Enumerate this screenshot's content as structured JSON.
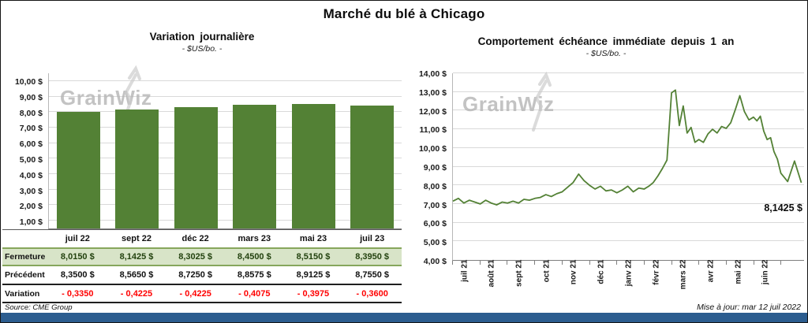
{
  "page": {
    "title": "Marché du blé à Chicago",
    "watermark": "GrainWiz",
    "source_note": "Source: CME Group",
    "update_note": "Mise à jour: mar 12 juil 2022"
  },
  "colors": {
    "bar_green": "#538135",
    "line_green": "#538135",
    "close_row_bg": "#d8e4c8",
    "close_row_border": "#86a65c",
    "variation_red": "#ff0000",
    "footer_blue": "#2c5d8f",
    "gridline_gray": "#d9d9d9"
  },
  "chart_data": [
    {
      "id": "daily_variation",
      "type": "bar",
      "title": "Variation journalière",
      "subtitle": "- $US/bo. -",
      "categories": [
        "juil 22",
        "sept 22",
        "déc 22",
        "mars 23",
        "mai 23",
        "juil 23"
      ],
      "values": [
        8.015,
        8.1425,
        8.3025,
        8.45,
        8.515,
        8.395
      ],
      "y_tick_labels": [
        "10,00 $",
        "9,00 $",
        "8,00 $",
        "7,00 $",
        "6,00 $",
        "5,00 $",
        "4,00 $",
        "3,00 $",
        "2,00 $",
        "1,00 $"
      ],
      "tick_values": [
        10,
        9,
        8,
        7,
        6,
        5,
        4,
        3,
        2,
        1
      ],
      "ylim": [
        0.5,
        10.5
      ],
      "grid": true,
      "legend": false
    },
    {
      "id": "front_month_one_year",
      "type": "line",
      "title": "Comportement échéance immédiate depuis 1 an",
      "subtitle": "- $US/bo. -",
      "x_tick_labels": [
        "juil 21",
        "août 21",
        "sept 21",
        "oct 21",
        "nov 21",
        "déc 21",
        "janv 22",
        "févr 22",
        "mars 22",
        "avr 22",
        "mai 22",
        "juin 22"
      ],
      "x_span_months": 12.85,
      "y_tick_labels": [
        "14,00 $",
        "13,00 $",
        "12,00 $",
        "11,00 $",
        "10,00 $",
        "9,00 $",
        "8,00 $",
        "7,00 $",
        "6,00 $",
        "5,00 $",
        "4,00 $"
      ],
      "tick_values": [
        14,
        13,
        12,
        11,
        10,
        9,
        8,
        7,
        6,
        5,
        4
      ],
      "ylim": [
        4,
        14
      ],
      "grid": true,
      "legend": false,
      "last_label": "8,1425 $",
      "last_value": 8.1425,
      "monthly_values": [
        [
          7.15,
          7.3,
          7.05,
          7.2,
          7.1
        ],
        [
          7.0,
          7.2,
          7.05,
          6.95,
          7.1
        ],
        [
          7.05,
          7.15,
          7.05,
          7.25,
          7.2
        ],
        [
          7.3,
          7.35,
          7.5,
          7.4,
          7.55
        ],
        [
          7.65,
          7.9,
          8.15,
          8.6,
          8.25
        ],
        [
          8.0,
          7.8,
          7.95,
          7.7,
          7.75
        ],
        [
          7.6,
          7.75,
          7.95,
          7.65,
          7.85
        ],
        [
          7.8,
          7.95,
          8.15,
          8.5,
          8.9,
          9.35
        ],
        [
          12.95,
          13.1,
          11.2,
          12.25,
          10.8,
          11.1,
          10.3
        ],
        [
          10.45,
          10.3,
          10.75,
          11.0,
          10.8,
          11.15
        ],
        [
          11.05,
          11.35,
          12.05,
          12.8,
          11.95,
          11.5
        ],
        [
          11.65,
          11.45,
          11.7,
          10.9,
          10.45,
          10.55,
          9.8,
          9.4
        ],
        [
          8.65,
          8.2,
          9.3,
          8.1425
        ]
      ]
    }
  ],
  "table": {
    "rows": [
      {
        "label": "Fermeture",
        "style": "close",
        "values": [
          "8,0150  $",
          "8,1425  $",
          "8,3025  $",
          "8,4500  $",
          "8,5150  $",
          "8,3950  $"
        ]
      },
      {
        "label": "Précédent",
        "style": "previous",
        "values": [
          "8,3500  $",
          "8,5650  $",
          "8,7250  $",
          "8,8575  $",
          "8,9125  $",
          "8,7550  $"
        ]
      },
      {
        "label": "Variation",
        "style": "variation",
        "values": [
          "- 0,3350",
          "- 0,4225",
          "- 0,4225",
          "- 0,4075",
          "- 0,3975",
          "- 0,3600"
        ]
      }
    ]
  }
}
